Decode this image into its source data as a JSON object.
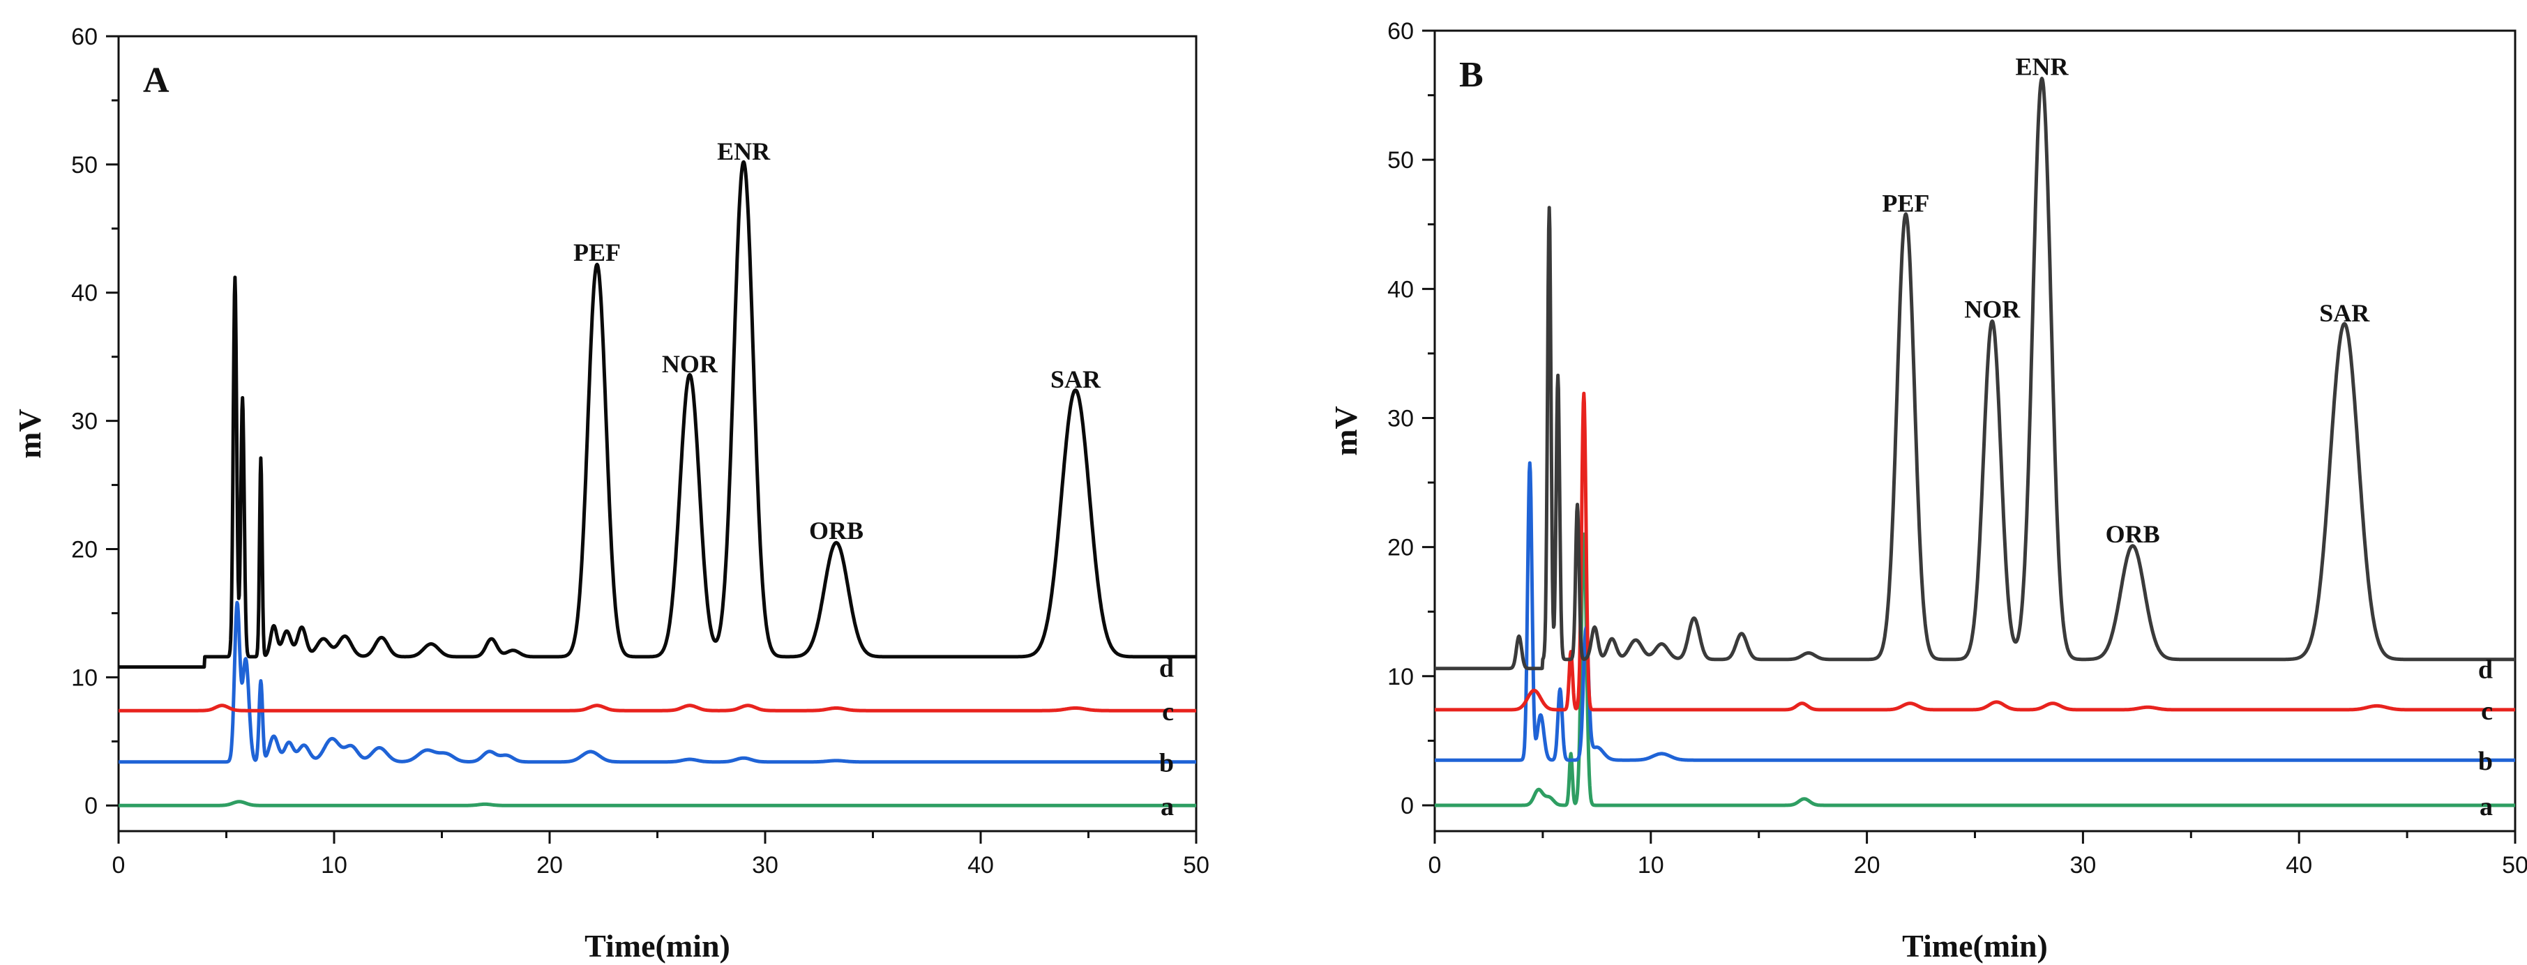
{
  "chart_data": [
    {
      "type": "line",
      "panel": "A",
      "xlabel": "Time(min)",
      "ylabel": "mV",
      "xlim": [
        0,
        50
      ],
      "ylim": [
        -2,
        60
      ],
      "xticks": [
        0,
        10,
        20,
        30,
        40,
        50
      ],
      "yticks": [
        0,
        10,
        20,
        30,
        40,
        50,
        60
      ],
      "peak_labels": [
        {
          "text": "PEF",
          "x": 22.2,
          "y": 41.5
        },
        {
          "text": "NOR",
          "x": 26.5,
          "y": 32.8
        },
        {
          "text": "ENR",
          "x": 29.0,
          "y": 49.4
        },
        {
          "text": "ORB",
          "x": 33.3,
          "y": 19.8
        },
        {
          "text": "SAR",
          "x": 44.4,
          "y": 31.6
        }
      ],
      "series": [
        {
          "name": "a",
          "color": "#2e9e62",
          "baseline": 0.0,
          "peaks": [
            [
              5.6,
              0.3,
              0.3
            ],
            [
              17.0,
              0.1,
              0.3
            ]
          ]
        },
        {
          "name": "b",
          "color": "#1f63d6",
          "baseline": 3.4,
          "peaks": [
            [
              5.5,
              12.2,
              0.12
            ],
            [
              5.9,
              8.0,
              0.15
            ],
            [
              6.6,
              6.3,
              0.08
            ],
            [
              7.2,
              2.0,
              0.2
            ],
            [
              7.9,
              1.5,
              0.2
            ],
            [
              8.6,
              1.3,
              0.25
            ],
            [
              9.9,
              1.8,
              0.35
            ],
            [
              10.8,
              1.2,
              0.3
            ],
            [
              12.1,
              1.1,
              0.35
            ],
            [
              14.3,
              0.9,
              0.4
            ],
            [
              15.2,
              0.6,
              0.35
            ],
            [
              17.2,
              0.8,
              0.3
            ],
            [
              18.0,
              0.5,
              0.3
            ],
            [
              21.9,
              0.8,
              0.4
            ],
            [
              26.5,
              0.2,
              0.35
            ],
            [
              29.0,
              0.3,
              0.35
            ],
            [
              33.3,
              0.1,
              0.4
            ]
          ]
        },
        {
          "name": "c",
          "color": "#e8231e",
          "baseline": 7.4,
          "peaks": [
            [
              4.8,
              0.4,
              0.3
            ],
            [
              22.2,
              0.4,
              0.35
            ],
            [
              26.5,
              0.4,
              0.35
            ],
            [
              29.2,
              0.4,
              0.35
            ],
            [
              33.3,
              0.2,
              0.4
            ],
            [
              44.4,
              0.2,
              0.45
            ]
          ]
        },
        {
          "name": "d",
          "color": "#0a0a0a",
          "baseline": 10.8,
          "steps": [
            [
              4.0,
              11.6
            ]
          ],
          "peaks": [
            [
              5.4,
              29.6,
              0.08
            ],
            [
              5.75,
              20.2,
              0.08
            ],
            [
              6.6,
              15.5,
              0.06
            ],
            [
              7.2,
              2.4,
              0.15
            ],
            [
              7.8,
              2.0,
              0.2
            ],
            [
              8.5,
              2.3,
              0.2
            ],
            [
              9.5,
              1.4,
              0.3
            ],
            [
              10.5,
              1.6,
              0.3
            ],
            [
              12.2,
              1.5,
              0.3
            ],
            [
              14.5,
              1.0,
              0.35
            ],
            [
              17.3,
              1.4,
              0.25
            ],
            [
              18.3,
              0.5,
              0.3
            ],
            [
              22.2,
              30.6,
              0.42
            ],
            [
              26.5,
              22.0,
              0.45
            ],
            [
              29.0,
              38.6,
              0.45
            ],
            [
              33.3,
              8.9,
              0.55
            ],
            [
              44.4,
              20.8,
              0.65
            ]
          ]
        }
      ]
    },
    {
      "type": "line",
      "panel": "B",
      "xlabel": "Time(min)",
      "ylabel": "mV",
      "xlim": [
        0,
        50
      ],
      "ylim": [
        -2,
        60
      ],
      "xticks": [
        0,
        10,
        20,
        30,
        40,
        50
      ],
      "yticks": [
        0,
        10,
        20,
        30,
        40,
        50,
        60
      ],
      "peak_labels": [
        {
          "text": "PEF",
          "x": 21.8,
          "y": 45.0
        },
        {
          "text": "NOR",
          "x": 25.8,
          "y": 36.8
        },
        {
          "text": "ENR",
          "x": 28.1,
          "y": 55.6
        },
        {
          "text": "ORB",
          "x": 32.3,
          "y": 19.4
        },
        {
          "text": "SAR",
          "x": 42.1,
          "y": 36.5
        }
      ],
      "series": [
        {
          "name": "a",
          "color": "#2e9e62",
          "baseline": 0.0,
          "peaks": [
            [
              4.8,
              1.2,
              0.2
            ],
            [
              5.3,
              0.6,
              0.2
            ],
            [
              6.3,
              4.0,
              0.07
            ],
            [
              6.9,
              21.0,
              0.12
            ],
            [
              17.1,
              0.5,
              0.25
            ]
          ]
        },
        {
          "name": "b",
          "color": "#1f63d6",
          "baseline": 3.5,
          "peaks": [
            [
              4.4,
              23.0,
              0.1
            ],
            [
              4.9,
              3.5,
              0.15
            ],
            [
              5.8,
              5.5,
              0.1
            ],
            [
              7.0,
              10.0,
              0.12
            ],
            [
              7.5,
              1.0,
              0.3
            ],
            [
              10.5,
              0.5,
              0.4
            ]
          ]
        },
        {
          "name": "c",
          "color": "#e8231e",
          "baseline": 7.4,
          "peaks": [
            [
              4.6,
              1.5,
              0.3
            ],
            [
              6.3,
              4.5,
              0.08
            ],
            [
              6.9,
              24.5,
              0.1
            ],
            [
              17.0,
              0.5,
              0.25
            ],
            [
              22.0,
              0.5,
              0.35
            ],
            [
              26.0,
              0.6,
              0.35
            ],
            [
              28.6,
              0.5,
              0.35
            ],
            [
              33.0,
              0.2,
              0.4
            ],
            [
              43.6,
              0.3,
              0.45
            ]
          ]
        },
        {
          "name": "d",
          "color": "#3a3a3a",
          "baseline": 10.6,
          "steps": [
            [
              5.0,
              11.3
            ]
          ],
          "peaks": [
            [
              3.9,
              2.5,
              0.12
            ],
            [
              5.3,
              35.0,
              0.08
            ],
            [
              5.7,
              22.0,
              0.08
            ],
            [
              6.6,
              12.0,
              0.08
            ],
            [
              7.4,
              2.5,
              0.15
            ],
            [
              8.2,
              1.6,
              0.2
            ],
            [
              9.3,
              1.5,
              0.3
            ],
            [
              10.5,
              1.2,
              0.3
            ],
            [
              12.0,
              3.2,
              0.25
            ],
            [
              14.2,
              2.0,
              0.25
            ],
            [
              17.3,
              0.5,
              0.3
            ],
            [
              21.8,
              34.5,
              0.4
            ],
            [
              25.8,
              26.2,
              0.4
            ],
            [
              28.1,
              45.0,
              0.42
            ],
            [
              32.3,
              8.8,
              0.55
            ],
            [
              42.1,
              26.0,
              0.65
            ]
          ]
        }
      ]
    }
  ]
}
